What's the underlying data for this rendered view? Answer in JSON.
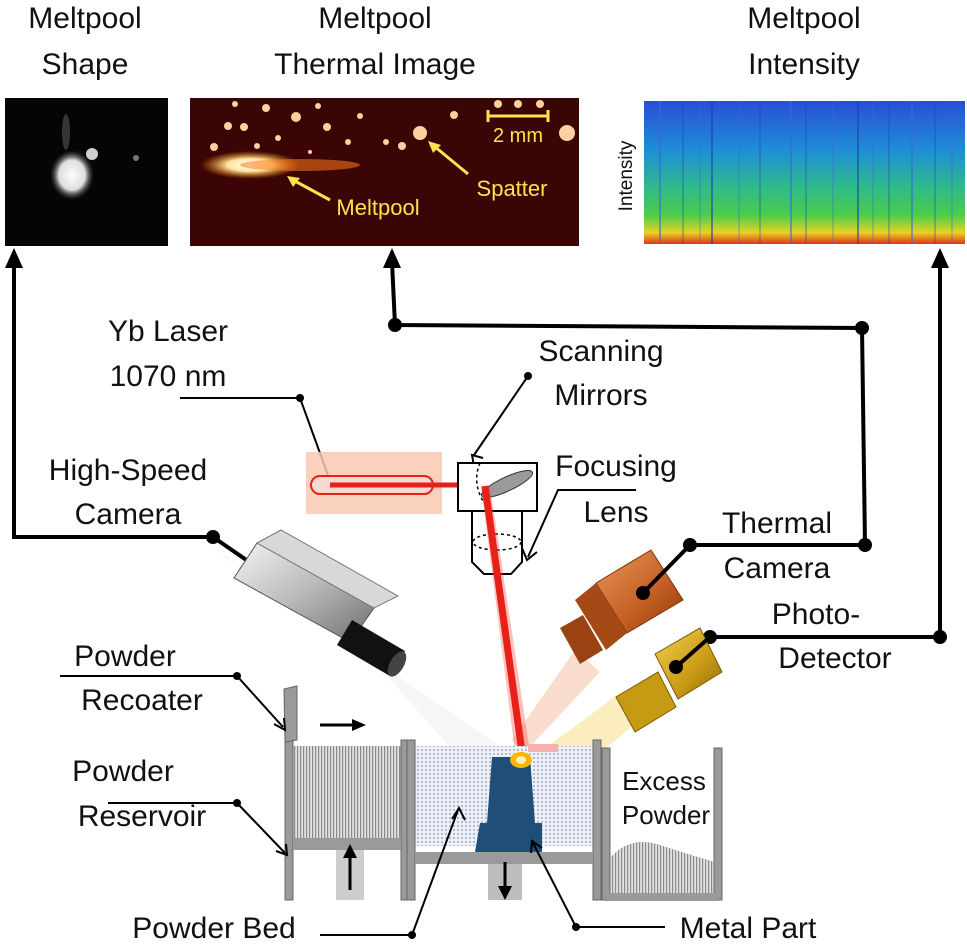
{
  "panels": {
    "shape": {
      "title_line1": "Meltpool",
      "title_line2": "Shape"
    },
    "thermal": {
      "title_line1": "Meltpool",
      "title_line2": "Thermal Image",
      "scale_label": "2 mm",
      "meltpool_label": "Meltpool",
      "spatter_label": "Spatter"
    },
    "intensity": {
      "title_line1": "Meltpool",
      "title_line2": "Intensity",
      "axis_label": "Intensity"
    }
  },
  "components": {
    "laser": {
      "line1": "Yb Laser",
      "line2": "1070 nm"
    },
    "mirrors": {
      "line1": "Scanning",
      "line2": "Mirrors"
    },
    "lens": {
      "line1": "Focusing",
      "line2": "Lens"
    },
    "high_speed_camera": {
      "line1": "High-Speed",
      "line2": "Camera"
    },
    "thermal_camera": {
      "line1": "Thermal",
      "line2": "Camera"
    },
    "photodetector": {
      "line1": "Photo-",
      "line2": "Detector"
    },
    "recoater": {
      "line1": "Powder",
      "line2": "Recoater"
    },
    "reservoir": {
      "line1": "Powder",
      "line2": "Reservoir"
    },
    "excess": {
      "line1": "Excess",
      "line2": "Powder"
    },
    "powder_bed": "Powder Bed",
    "metal_part": "Metal Part"
  },
  "colors": {
    "laser_beam": "#e8201a",
    "thermal_camera": "#c9652a",
    "photodetector": "#c9a219",
    "metal_part": "#1f4e79",
    "meltpool_label": "#ffe34d"
  }
}
